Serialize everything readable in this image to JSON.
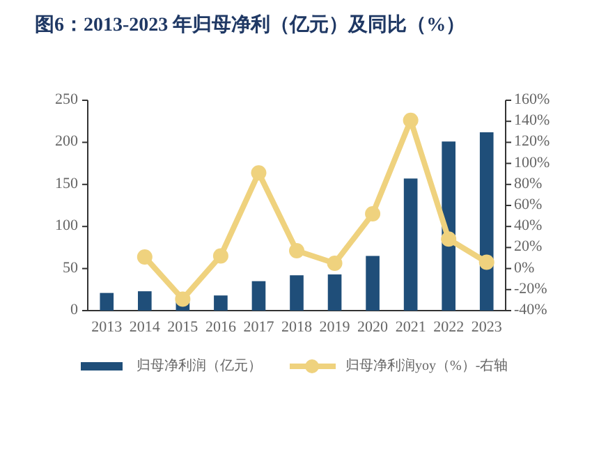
{
  "chart_data": {
    "type": "bar",
    "title": "图6：2013-2023 年归母净利（亿元）及同比（%）",
    "categories": [
      "2013",
      "2014",
      "2015",
      "2016",
      "2017",
      "2018",
      "2019",
      "2020",
      "2021",
      "2022",
      "2023"
    ],
    "series": [
      {
        "name": "归母净利润（亿元）",
        "color": "#1f4e79",
        "values": [
          21,
          23,
          10,
          18,
          35,
          42,
          43,
          65,
          157,
          201,
          212
        ]
      },
      {
        "name": "归母净利润yoy（%）-右轴",
        "type": "line",
        "axis": "y2",
        "color": "#efd27e",
        "marker": "circle",
        "values": [
          null,
          11,
          -29,
          12,
          91,
          17,
          5,
          52,
          141,
          28,
          6
        ]
      }
    ],
    "ylim": [
      0,
      250
    ],
    "yticks": [
      0,
      50,
      100,
      150,
      200,
      250
    ],
    "y2lim": [
      -40,
      160
    ],
    "y2ticks": [
      {
        "value": -40,
        "label": "-40%"
      },
      {
        "value": -20,
        "label": "-20%"
      },
      {
        "value": 0,
        "label": "0%"
      },
      {
        "value": 20,
        "label": "20%"
      },
      {
        "value": 40,
        "label": "40%"
      },
      {
        "value": 60,
        "label": "60%"
      },
      {
        "value": 80,
        "label": "80%"
      },
      {
        "value": 100,
        "label": "100%"
      },
      {
        "value": 120,
        "label": "120%"
      },
      {
        "value": 140,
        "label": "140%"
      },
      {
        "value": 160,
        "label": "160%"
      }
    ],
    "grid": false,
    "legend": "bottom"
  }
}
